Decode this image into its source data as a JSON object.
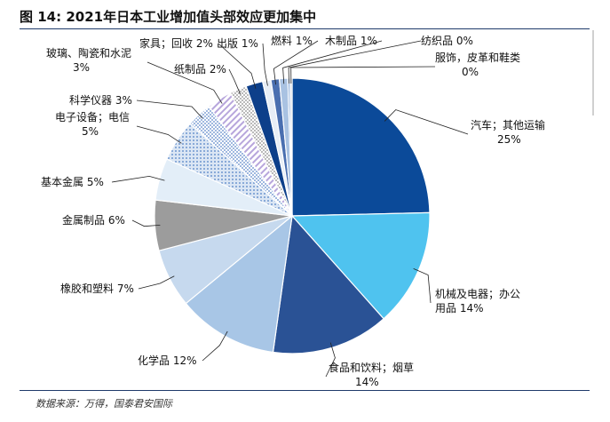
{
  "chart_data": {
    "type": "pie",
    "title": "图 14:  2021年日本工业增加值头部效应更加集中",
    "source": "数据来源：万得，国泰君安国际",
    "slices": [
      {
        "name": "汽车；其他运输",
        "value": 25,
        "label": [
          "汽车；其他运输",
          "25%"
        ],
        "color": "#0b4a99",
        "pattern": "solid"
      },
      {
        "name": "机械及电器；办公用品",
        "value": 14,
        "label": [
          "机械及电器；办公",
          "用品 14%"
        ],
        "color": "#4fc3ef",
        "pattern": "solid"
      },
      {
        "name": "食品和饮料；烟草",
        "value": 14,
        "label": [
          "食品和饮料；烟草",
          "14%"
        ],
        "color": "#2a5295",
        "pattern": "solid"
      },
      {
        "name": "化学品",
        "value": 12,
        "label": [
          "化学品 12%"
        ],
        "color": "#a8c6e6",
        "pattern": "solid"
      },
      {
        "name": "橡胶和塑料",
        "value": 7,
        "label": [
          "橡胶和塑料 7%"
        ],
        "color": "#c6d9ee",
        "pattern": "solid"
      },
      {
        "name": "金属制品",
        "value": 6,
        "label": [
          "金属制品 6%"
        ],
        "color": "#9c9c9c",
        "pattern": "solid"
      },
      {
        "name": "基本金属",
        "value": 5,
        "label": [
          "基本金属 5%"
        ],
        "color": "#e3eef8",
        "pattern": "solid"
      },
      {
        "name": "电子设备；电信",
        "value": 5,
        "label": [
          "电子设备；电信",
          "5%"
        ],
        "color": "#8ab0da",
        "pattern": "dots"
      },
      {
        "name": "科学仪器",
        "value": 3,
        "label": [
          "科学仪器 3%"
        ],
        "color": "#5b86c8",
        "pattern": "dots"
      },
      {
        "name": "玻璃、陶瓷和水泥",
        "value": 3,
        "label": [
          "玻璃、陶瓷和水泥",
          "3%"
        ],
        "color": "#c4b5e0",
        "pattern": "hatch"
      },
      {
        "name": "纸制品",
        "value": 2,
        "label": [
          "纸制品 2%"
        ],
        "color": "#bdbdbd",
        "pattern": "dots"
      },
      {
        "name": "家具；回收",
        "value": 2,
        "label": [
          "家具；回收 2%"
        ],
        "color": "#0d3f8a",
        "pattern": "solid"
      },
      {
        "name": "出版",
        "value": 1,
        "label": [
          "出版 1%"
        ],
        "color": "#e8eef6",
        "pattern": "solid"
      },
      {
        "name": "燃料",
        "value": 1,
        "label": [
          "燃料 1%"
        ],
        "color": "#4a6fb0",
        "pattern": "solid"
      },
      {
        "name": "木制品",
        "value": 1,
        "label": [
          "木制品 1%"
        ],
        "color": "#a9c2e2",
        "pattern": "solid"
      },
      {
        "name": "纺织品",
        "value": 0,
        "label": [
          "纺织品 0%"
        ],
        "color": "#7aa0d4",
        "pattern": "solid"
      },
      {
        "name": "服饰，皮革和鞋类",
        "value": 0,
        "label": [
          "服饰，皮革和鞋类",
          "0%"
        ],
        "color": "#cfd8e4",
        "pattern": "solid"
      }
    ]
  }
}
